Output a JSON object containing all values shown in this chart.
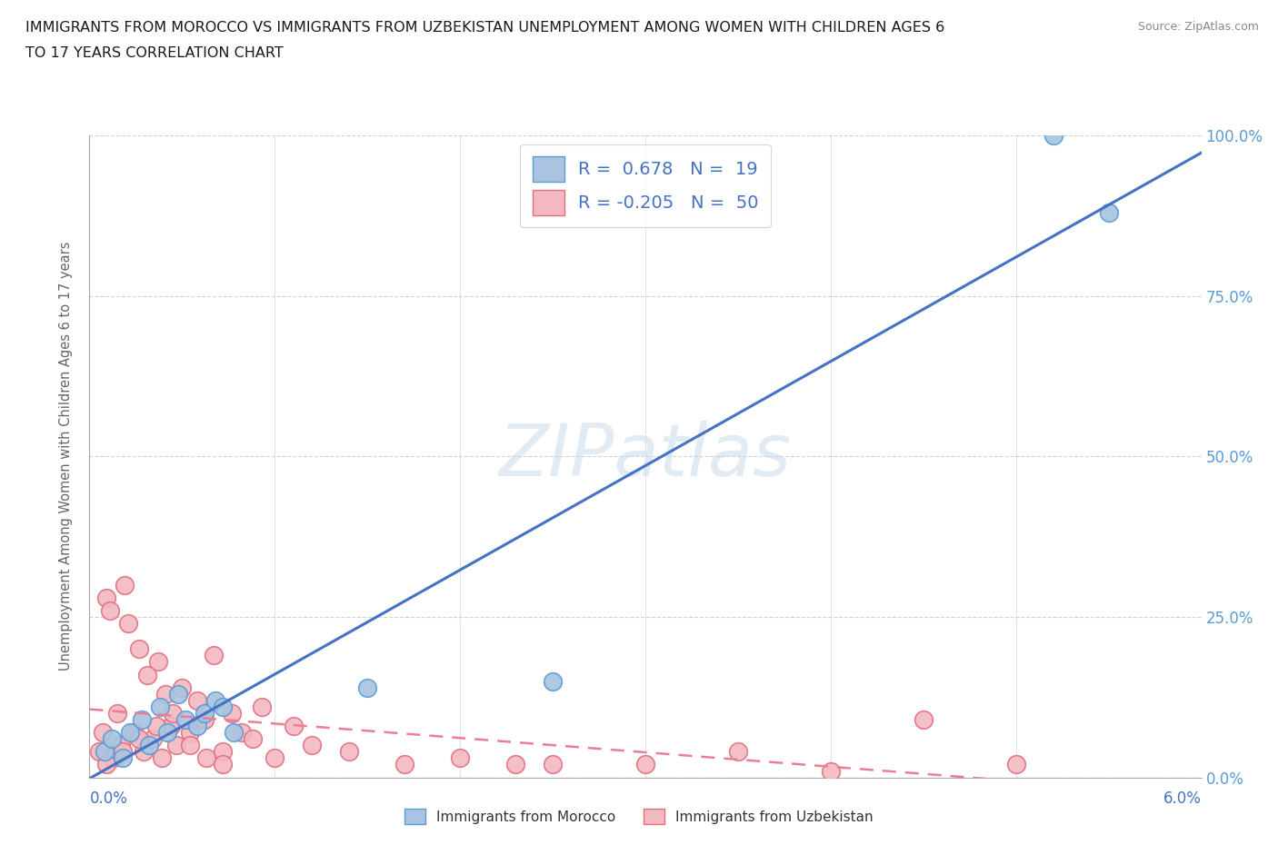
{
  "title_line1": "IMMIGRANTS FROM MOROCCO VS IMMIGRANTS FROM UZBEKISTAN UNEMPLOYMENT AMONG WOMEN WITH CHILDREN AGES 6",
  "title_line2": "TO 17 YEARS CORRELATION CHART",
  "source_text": "Source: ZipAtlas.com",
  "ylabel": "Unemployment Among Women with Children Ages 6 to 17 years",
  "xlim": [
    0.0,
    6.0
  ],
  "ylim": [
    0.0,
    100.0
  ],
  "x_ticks": [
    0.0,
    1.0,
    2.0,
    3.0,
    4.0,
    5.0,
    6.0
  ],
  "y_ticks": [
    0.0,
    25.0,
    50.0,
    75.0,
    100.0
  ],
  "watermark": "ZIPatlas",
  "legend_R1": "R =  0.678",
  "legend_N1": "N =  19",
  "legend_R2": "R = -0.205",
  "legend_N2": "N =  50",
  "morocco_color": "#a8c4e0",
  "morocco_edge_color": "#5b9bd5",
  "uzbekistan_color": "#f4b8c1",
  "uzbekistan_edge_color": "#e07080",
  "morocco_line_color": "#4472c4",
  "uzbekistan_line_color": "#ed7d97",
  "right_tick_color": "#5b9bd5",
  "background_color": "#ffffff",
  "morocco_x": [
    0.08,
    0.12,
    0.18,
    0.22,
    0.28,
    0.32,
    0.38,
    0.42,
    0.48,
    0.52,
    0.58,
    0.62,
    0.68,
    0.72,
    1.5,
    2.5,
    5.2,
    5.5,
    0.78
  ],
  "morocco_y": [
    4.0,
    6.0,
    3.0,
    7.0,
    9.0,
    5.0,
    11.0,
    7.0,
    13.0,
    9.0,
    8.0,
    10.0,
    12.0,
    11.0,
    14.0,
    15.0,
    100.0,
    88.0,
    7.0
  ],
  "uzbekistan_x": [
    0.05,
    0.07,
    0.09,
    0.11,
    0.13,
    0.15,
    0.17,
    0.19,
    0.21,
    0.24,
    0.27,
    0.29,
    0.31,
    0.34,
    0.37,
    0.39,
    0.41,
    0.44,
    0.47,
    0.5,
    0.54,
    0.58,
    0.62,
    0.67,
    0.72,
    0.77,
    0.82,
    0.88,
    0.93,
    1.0,
    1.1,
    1.2,
    1.4,
    1.7,
    2.0,
    2.3,
    2.5,
    3.0,
    3.5,
    4.0,
    4.5,
    5.0,
    0.09,
    0.18,
    0.27,
    0.36,
    0.45,
    0.54,
    0.63,
    0.72
  ],
  "uzbekistan_y": [
    4.0,
    7.0,
    28.0,
    26.0,
    3.0,
    10.0,
    5.0,
    30.0,
    24.0,
    7.0,
    20.0,
    4.0,
    16.0,
    6.0,
    18.0,
    3.0,
    13.0,
    8.0,
    5.0,
    14.0,
    7.0,
    12.0,
    9.0,
    19.0,
    4.0,
    10.0,
    7.0,
    6.0,
    11.0,
    3.0,
    8.0,
    5.0,
    4.0,
    2.0,
    3.0,
    2.0,
    2.0,
    2.0,
    4.0,
    1.0,
    9.0,
    2.0,
    2.0,
    4.0,
    6.0,
    8.0,
    10.0,
    5.0,
    3.0,
    2.0
  ]
}
